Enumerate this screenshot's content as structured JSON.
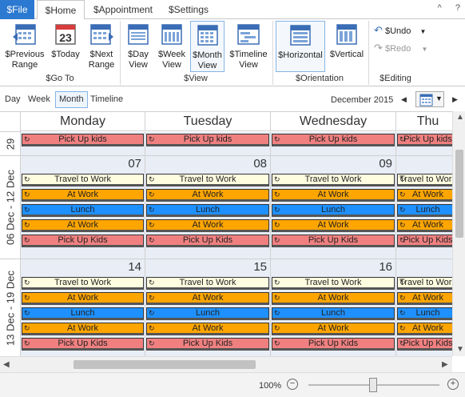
{
  "tabs": {
    "file": "$File",
    "home": "$Home",
    "appointment": "$Appointment",
    "settings": "$Settings"
  },
  "window_controls": {
    "collapse": "^",
    "help": "?"
  },
  "ribbon": {
    "goto": {
      "label": "$Go To",
      "previous": "$Previous Range",
      "today": "$Today",
      "today_num": "23",
      "next": "$Next Range"
    },
    "view": {
      "label": "$View",
      "day": "$Day View",
      "week": "$Week View",
      "month": "$Month View",
      "timeline": "$Timeline View"
    },
    "orientation": {
      "label": "$Orientation",
      "horizontal": "$Horizontal",
      "vertical": "$Vertical"
    },
    "editing": {
      "label": "$Editing",
      "undo": "$Undo",
      "redo": "$Redo"
    }
  },
  "viewbar": {
    "day": "Day",
    "week": "Week",
    "month": "Month",
    "timeline": "Timeline",
    "range": "December 2015",
    "prev": "◀",
    "next": "▶"
  },
  "calendar": {
    "days": [
      "Monday",
      "Tuesday",
      "Wednesday",
      "Thu"
    ],
    "weeks": [
      {
        "label": "29",
        "dates": [
          "",
          "",
          "",
          ""
        ],
        "appts": [
          "Pick Up kids"
        ]
      },
      {
        "label": "06 Dec - 12 Dec",
        "dates": [
          "07",
          "08",
          "09",
          ""
        ],
        "appts": [
          "Travel to Work",
          "At Work",
          "Lunch",
          "At Work",
          "Pick Up Kids"
        ]
      },
      {
        "label": "13 Dec - 19 Dec",
        "dates": [
          "14",
          "15",
          "16",
          ""
        ],
        "appts": [
          "Travel to Work",
          "At Work",
          "Lunch",
          "At Work",
          "Pick Up Kids"
        ]
      }
    ],
    "colors": {
      "travel": "#fffde0",
      "work": "#ffa500",
      "lunch": "#1e90ff",
      "kids": "#f08080",
      "bg": "#e8edf6"
    }
  },
  "statusbar": {
    "zoom": "100%",
    "zoom_minus": "−",
    "zoom_plus": "+"
  }
}
